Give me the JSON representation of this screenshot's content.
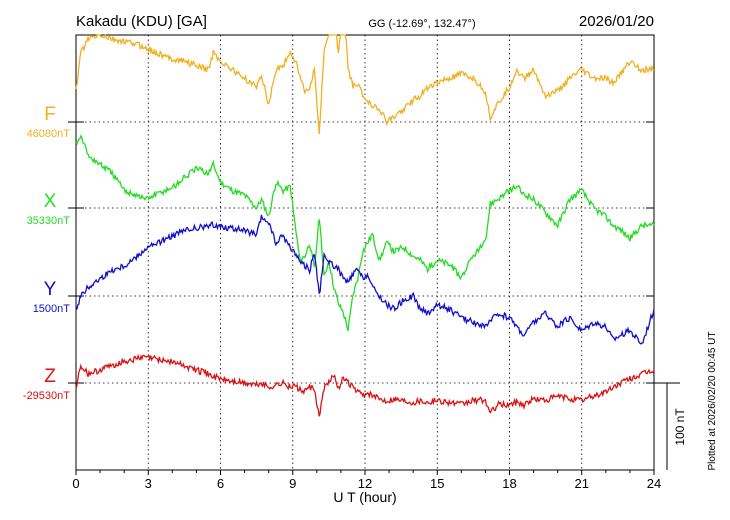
{
  "header": {
    "station": "Kakadu (KDU)  [GA]",
    "coords": "GG (-12.69°, 132.47°)",
    "date": "2026/01/20"
  },
  "footer": {
    "plotted": "Plotted at 2026/02/20 00:45 UT"
  },
  "chart_data": {
    "type": "line",
    "title": "Kakadu (KDU)  [GA]",
    "xlabel": "U T (hour)",
    "ylabel": "",
    "xlim": [
      0,
      24
    ],
    "xticks": [
      0,
      3,
      6,
      9,
      12,
      15,
      18,
      21,
      24
    ],
    "grid": true,
    "scale_bar": "100 nT",
    "colors": {
      "F": "#f0b020",
      "X": "#22dd22",
      "Y": "#1010cc",
      "Z": "#dd1111"
    },
    "series": [
      {
        "name": "F",
        "baseline": "46080nT",
        "x": [
          0,
          0.2,
          0.5,
          1,
          1.5,
          2,
          2.5,
          2.9,
          3.3,
          3.7,
          4.1,
          4.5,
          5,
          5.5,
          5.7,
          6,
          6.5,
          7,
          7.5,
          7.7,
          8,
          8.3,
          8.6,
          8.9,
          9.1,
          9.3,
          9.5,
          9.7,
          9.9,
          10.1,
          10.3,
          10.5,
          10.7,
          10.9,
          11.1,
          11.3,
          11.5,
          11.7,
          11.9,
          12.1,
          12.3,
          12.6,
          12.9,
          13.2,
          13.6,
          14,
          14.3,
          14.6,
          15,
          15.5,
          16,
          16.5,
          17,
          17.2,
          17.5,
          18,
          18.3,
          18.6,
          19,
          19.5,
          20,
          20.5,
          21,
          21.5,
          22,
          22.3,
          22.6,
          23,
          23.5,
          24
        ],
        "values": [
          35,
          80,
          95,
          100,
          95,
          92,
          90,
          85,
          80,
          75,
          72,
          70,
          65,
          60,
          80,
          70,
          60,
          50,
          40,
          55,
          20,
          60,
          65,
          80,
          70,
          55,
          35,
          40,
          60,
          -15,
          80,
          100,
          130,
          80,
          140,
          60,
          40,
          45,
          30,
          25,
          20,
          15,
          0,
          5,
          15,
          25,
          30,
          40,
          45,
          50,
          55,
          50,
          35,
          5,
          20,
          40,
          60,
          50,
          60,
          30,
          35,
          50,
          60,
          50,
          50,
          45,
          55,
          70,
          60,
          60
        ]
      },
      {
        "name": "X",
        "baseline": "35330nT",
        "x": [
          0,
          0.2,
          0.5,
          1,
          1.5,
          2,
          2.5,
          2.9,
          3.3,
          3.7,
          4.1,
          4.5,
          5,
          5.5,
          5.7,
          6,
          6.5,
          7,
          7.5,
          7.7,
          8,
          8.3,
          8.6,
          8.9,
          9.1,
          9.3,
          9.5,
          9.7,
          9.9,
          10.1,
          10.3,
          10.5,
          10.7,
          10.9,
          11.1,
          11.3,
          11.5,
          11.7,
          11.9,
          12.1,
          12.3,
          12.6,
          12.9,
          13.2,
          13.6,
          14,
          14.3,
          14.6,
          15,
          15.5,
          16,
          16.5,
          17,
          17.2,
          17.5,
          18,
          18.3,
          18.6,
          19,
          19.5,
          20,
          20.5,
          21,
          21.5,
          22,
          22.3,
          22.6,
          23,
          23.5,
          24
        ],
        "values": [
          75,
          85,
          60,
          50,
          40,
          20,
          15,
          10,
          15,
          20,
          25,
          35,
          45,
          40,
          50,
          30,
          20,
          15,
          0,
          10,
          -10,
          30,
          20,
          25,
          -20,
          -60,
          -55,
          -40,
          -70,
          -10,
          -80,
          -60,
          -90,
          -110,
          -120,
          -140,
          -100,
          -80,
          -50,
          -40,
          -30,
          -60,
          -40,
          -50,
          -45,
          -55,
          -60,
          -70,
          -60,
          -65,
          -80,
          -55,
          -40,
          5,
          10,
          20,
          25,
          15,
          10,
          -5,
          -20,
          10,
          20,
          0,
          -10,
          -20,
          -25,
          -35,
          -20,
          -20
        ]
      },
      {
        "name": "Y",
        "baseline": "1500nT",
        "x": [
          0,
          0.2,
          0.5,
          1,
          1.5,
          2,
          2.5,
          2.9,
          3.3,
          3.7,
          4.1,
          4.5,
          5,
          5.5,
          5.7,
          6,
          6.5,
          7,
          7.5,
          7.7,
          8,
          8.3,
          8.6,
          8.9,
          9.1,
          9.3,
          9.5,
          9.7,
          9.9,
          10.1,
          10.3,
          10.5,
          10.7,
          10.9,
          11.1,
          11.3,
          11.5,
          11.7,
          11.9,
          12.1,
          12.3,
          12.6,
          12.9,
          13.2,
          13.6,
          14,
          14.3,
          14.6,
          15,
          15.5,
          16,
          16.5,
          17,
          17.2,
          17.5,
          18,
          18.3,
          18.6,
          19,
          19.5,
          20,
          20.5,
          21,
          21.5,
          22,
          22.3,
          22.6,
          23,
          23.5,
          24
        ],
        "values": [
          -15,
          0,
          10,
          20,
          30,
          35,
          45,
          55,
          60,
          65,
          70,
          75,
          78,
          80,
          82,
          80,
          78,
          75,
          70,
          90,
          85,
          60,
          70,
          55,
          50,
          40,
          35,
          30,
          50,
          0,
          45,
          40,
          35,
          30,
          20,
          15,
          25,
          30,
          20,
          25,
          10,
          0,
          -10,
          -15,
          -5,
          0,
          -15,
          -20,
          -10,
          -15,
          -25,
          -30,
          -35,
          -30,
          -20,
          -25,
          -35,
          -45,
          -30,
          -20,
          -35,
          -25,
          -40,
          -30,
          -35,
          -50,
          -45,
          -40,
          -55,
          -15
        ]
      },
      {
        "name": "Z",
        "baseline": "-29530nT",
        "x": [
          0,
          0.2,
          0.5,
          1,
          1.5,
          2,
          2.5,
          2.9,
          3.3,
          3.7,
          4.1,
          4.5,
          5,
          5.5,
          5.7,
          6,
          6.5,
          7,
          7.5,
          7.7,
          8,
          8.3,
          8.6,
          8.9,
          9.1,
          9.3,
          9.5,
          9.7,
          9.9,
          10.1,
          10.3,
          10.5,
          10.7,
          10.9,
          11.1,
          11.3,
          11.5,
          11.7,
          11.9,
          12.1,
          12.3,
          12.6,
          12.9,
          13.2,
          13.6,
          14,
          14.3,
          14.6,
          15,
          15.5,
          16,
          16.5,
          17,
          17.2,
          17.5,
          18,
          18.3,
          18.6,
          19,
          19.5,
          20,
          20.5,
          21,
          21.5,
          22,
          22.3,
          22.6,
          23,
          23.5,
          24
        ],
        "values": [
          -5,
          20,
          10,
          15,
          20,
          25,
          28,
          30,
          28,
          26,
          24,
          20,
          15,
          10,
          8,
          5,
          2,
          0,
          -2,
          0,
          -5,
          -2,
          0,
          -5,
          -3,
          -8,
          -10,
          -5,
          -8,
          -40,
          -5,
          0,
          10,
          -5,
          5,
          0,
          -5,
          -10,
          -15,
          -12,
          -15,
          -18,
          -20,
          -18,
          -20,
          -22,
          -20,
          -22,
          -20,
          -22,
          -25,
          -20,
          -20,
          -35,
          -25,
          -25,
          -22,
          -25,
          -18,
          -20,
          -15,
          -18,
          -20,
          -15,
          -10,
          -5,
          0,
          5,
          10,
          15
        ]
      }
    ]
  }
}
